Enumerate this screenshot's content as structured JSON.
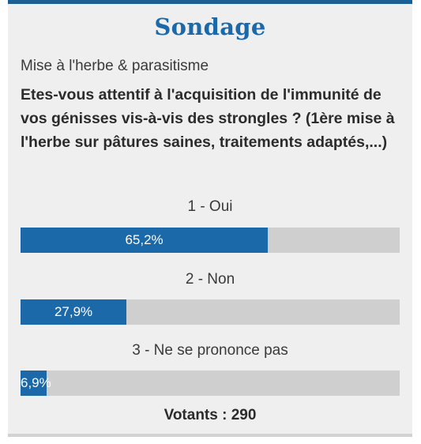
{
  "poll": {
    "title": "Sondage",
    "subtitle": "Mise à l'herbe & parasitisme",
    "question": "Etes-vous attentif à l'acquisition de l'immunité de vos génisses vis-à-vis des strongles ? (1ère mise à l'herbe sur pâtures saines, traitements adaptés,...)",
    "answers": [
      {
        "label": "1 - Oui",
        "percent_text": "65,2%",
        "percent": 65.2
      },
      {
        "label": "2 - Non",
        "percent_text": "27,9%",
        "percent": 27.9
      },
      {
        "label": "3 - Ne se prononce pas",
        "percent_text": "6,9%",
        "percent": 6.9
      }
    ],
    "voters": "Votants : 290"
  },
  "colors": {
    "accent": "#1b69a8",
    "top_border": "#1e5f91",
    "bar_track": "#cfcfcf",
    "panel_bg": "#efefef"
  }
}
